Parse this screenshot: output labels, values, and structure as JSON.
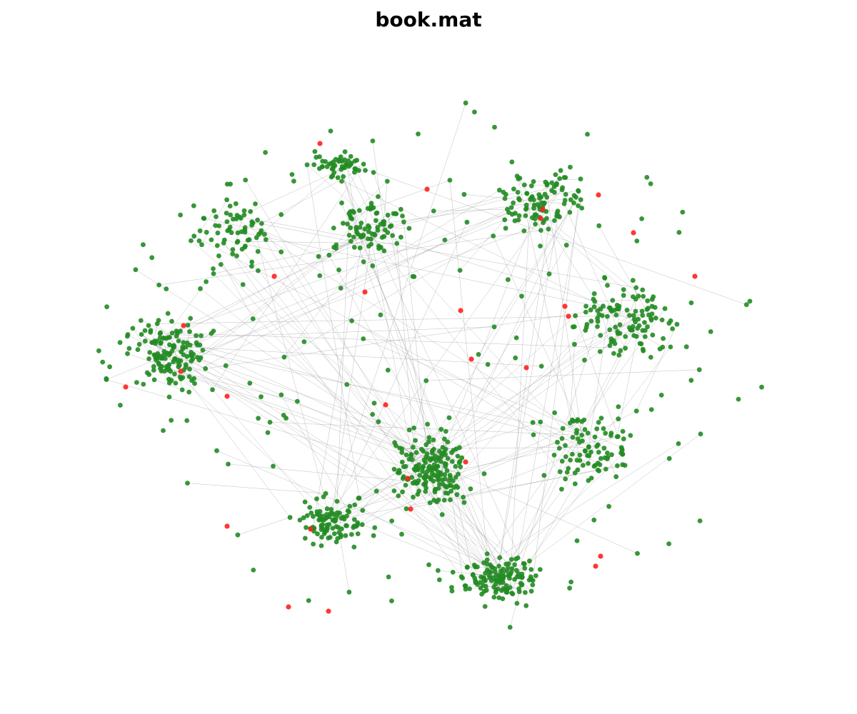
{
  "title": "book.mat",
  "graph": {
    "edge_color": "#8a8a8a",
    "normal_node_color": "#228b22",
    "highlight_node_color": "#ff2020",
    "approx_node_count": 1200,
    "highlighted_node_count": 30
  }
}
